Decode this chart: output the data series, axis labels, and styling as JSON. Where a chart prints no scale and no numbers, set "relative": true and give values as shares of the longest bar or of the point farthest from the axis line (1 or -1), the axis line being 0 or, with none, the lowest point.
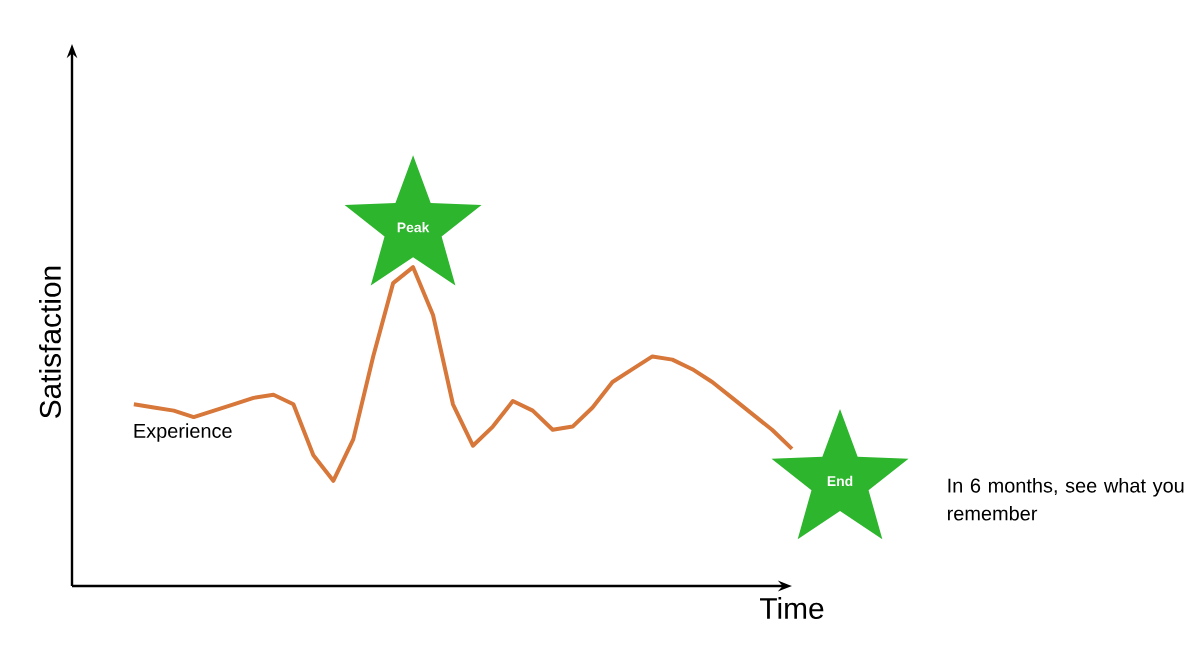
{
  "chart_data": {
    "type": "line",
    "relative": true,
    "xlabel": "Time",
    "ylabel": "Satisfaction",
    "categories": [
      null,
      null,
      null,
      null,
      null,
      null,
      null,
      null,
      null,
      null,
      null,
      null,
      null,
      null,
      null,
      null,
      null,
      null,
      null,
      null,
      null,
      null,
      null,
      null,
      null,
      null,
      null,
      null,
      null,
      null,
      null,
      null,
      null,
      null
    ],
    "marker": "none",
    "line_style": "solid",
    "series": [
      {
        "color": "#d7773a",
        "values": [
          0.57,
          0.56,
          0.55,
          0.53,
          0.55,
          0.57,
          0.59,
          0.6,
          0.57,
          0.41,
          0.33,
          0.46,
          0.72,
          0.95,
          1.0,
          0.85,
          0.57,
          0.44,
          0.5,
          0.58,
          0.55,
          0.49,
          0.5,
          0.56,
          0.64,
          0.68,
          0.72,
          0.71,
          0.68,
          0.64,
          0.59,
          0.54,
          0.49,
          0.43
        ]
      }
    ],
    "annotations": [
      "Experience",
      "Peak",
      "End",
      "In 6 months, see what you remember"
    ]
  }
}
